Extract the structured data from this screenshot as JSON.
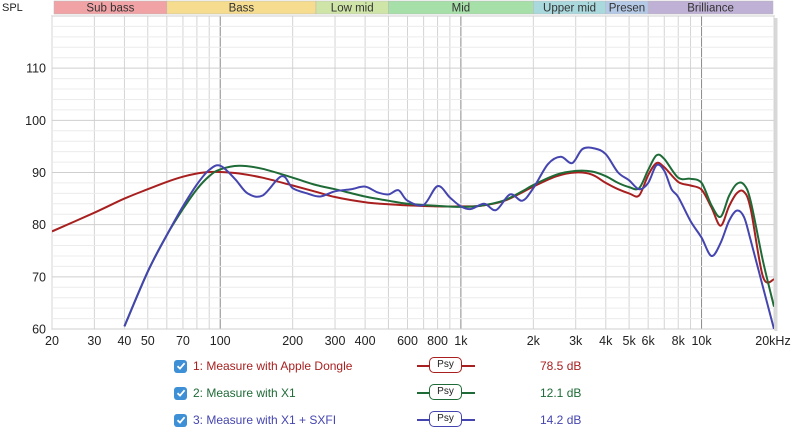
{
  "chart_data": {
    "type": "line",
    "ylabel": "SPL",
    "x_scale": "log",
    "xlim": [
      20,
      20000
    ],
    "ylim": [
      60,
      120
    ],
    "y_ticks": [
      60,
      70,
      80,
      90,
      100,
      110
    ],
    "x_ticks": [
      {
        "v": 20,
        "label": "20"
      },
      {
        "v": 30,
        "label": "30"
      },
      {
        "v": 40,
        "label": "40"
      },
      {
        "v": 50,
        "label": "50"
      },
      {
        "v": 70,
        "label": "70"
      },
      {
        "v": 100,
        "label": "100"
      },
      {
        "v": 200,
        "label": "200"
      },
      {
        "v": 300,
        "label": "300"
      },
      {
        "v": 400,
        "label": "400"
      },
      {
        "v": 600,
        "label": "600"
      },
      {
        "v": 800,
        "label": "800"
      },
      {
        "v": 1000,
        "label": "1k"
      },
      {
        "v": 2000,
        "label": "2k"
      },
      {
        "v": 3000,
        "label": "3k"
      },
      {
        "v": 4000,
        "label": "4k"
      },
      {
        "v": 5000,
        "label": "5k"
      },
      {
        "v": 6000,
        "label": "6k"
      },
      {
        "v": 8000,
        "label": "8k"
      },
      {
        "v": 10000,
        "label": "10k"
      },
      {
        "v": 20000,
        "label": "20kHz"
      }
    ],
    "bands": [
      {
        "label": "Sub bass",
        "from": 20,
        "to": 60,
        "color": "#f0a2a5"
      },
      {
        "label": "Bass",
        "from": 60,
        "to": 250,
        "color": "#f5dc8e"
      },
      {
        "label": "Low mid",
        "from": 250,
        "to": 500,
        "color": "#cfe5a7"
      },
      {
        "label": "Mid",
        "from": 500,
        "to": 2000,
        "color": "#a6dfa8"
      },
      {
        "label": "Upper mid",
        "from": 2000,
        "to": 4000,
        "color": "#a9d8dd"
      },
      {
        "label": "Presen",
        "from": 4000,
        "to": 6000,
        "color": "#b4c9e6"
      },
      {
        "label": "Brilliance",
        "from": 6000,
        "to": 20000,
        "color": "#bfb1d6"
      }
    ],
    "series": [
      {
        "name": "1: Measure with Apple Dongle",
        "color": "#a81f1f",
        "offset": "78.5 dB",
        "x": [
          20,
          30,
          40,
          50,
          60,
          70,
          80,
          90,
          100,
          120,
          150,
          200,
          250,
          300,
          400,
          500,
          600,
          800,
          1000,
          1200,
          1500,
          1800,
          2000,
          2500,
          3000,
          3500,
          4000,
          4500,
          5000,
          5500,
          6000,
          6500,
          7000,
          8000,
          9000,
          10000,
          11000,
          12000,
          13000,
          14000,
          15000,
          16000,
          18000,
          20000
        ],
        "y": [
          78.7,
          82.3,
          85.0,
          86.8,
          88.2,
          89.2,
          89.8,
          90.1,
          90.1,
          89.8,
          89.0,
          87.5,
          86.3,
          85.3,
          84.3,
          83.9,
          83.7,
          83.5,
          83.5,
          83.6,
          84.5,
          86.2,
          87.3,
          89.3,
          90.0,
          89.6,
          88.0,
          86.8,
          86.0,
          85.6,
          89.5,
          91.8,
          91.0,
          88.2,
          87.5,
          86.7,
          83.3,
          79.8,
          83.5,
          86.0,
          86.3,
          83.0,
          70.0,
          69.5
        ]
      },
      {
        "name": "2: Measure with X1",
        "color": "#1f6b37",
        "offset": "12.1 dB",
        "x": [
          40,
          50,
          60,
          70,
          80,
          90,
          100,
          120,
          150,
          200,
          250,
          300,
          400,
          500,
          600,
          800,
          1000,
          1200,
          1500,
          1800,
          2000,
          2500,
          3000,
          3500,
          4000,
          4500,
          5000,
          5500,
          6000,
          6500,
          7000,
          8000,
          9000,
          10000,
          11000,
          12000,
          13000,
          14000,
          15000,
          16000,
          18000,
          20000
        ],
        "y": [
          60.5,
          71.0,
          78.0,
          83.0,
          86.8,
          89.3,
          90.6,
          91.3,
          90.7,
          89.0,
          87.6,
          86.8,
          85.4,
          84.6,
          84.0,
          83.6,
          83.4,
          83.6,
          84.6,
          86.4,
          87.6,
          89.6,
          90.3,
          90.2,
          89.3,
          88.0,
          87.2,
          87.0,
          90.5,
          93.3,
          92.6,
          89.0,
          88.8,
          88.0,
          83.7,
          81.5,
          85.5,
          87.8,
          87.7,
          84.5,
          73.0,
          64.3
        ]
      },
      {
        "name": "3: Measure with X1 + SXFI",
        "color": "#4545b0",
        "offset": "14.2 dB",
        "x": [
          40,
          50,
          60,
          70,
          80,
          90,
          100,
          115,
          130,
          150,
          180,
          200,
          230,
          260,
          300,
          350,
          400,
          450,
          500,
          550,
          600,
          700,
          800,
          900,
          1000,
          1100,
          1250,
          1400,
          1600,
          1800,
          2000,
          2300,
          2600,
          2900,
          3200,
          3600,
          4000,
          4500,
          5000,
          5500,
          6000,
          6500,
          7000,
          7500,
          8000,
          9000,
          10000,
          11000,
          12000,
          13000,
          14000,
          15000,
          16000,
          18000,
          20000
        ],
        "y": [
          60.5,
          71.0,
          78.0,
          83.5,
          87.7,
          90.5,
          91.3,
          88.8,
          86.0,
          85.6,
          89.3,
          87.0,
          86.0,
          85.4,
          86.4,
          86.8,
          87.3,
          86.2,
          85.8,
          86.6,
          84.6,
          83.8,
          87.4,
          85.2,
          83.5,
          83.0,
          84.0,
          82.8,
          85.8,
          84.6,
          87.0,
          91.6,
          93.0,
          91.8,
          94.5,
          94.6,
          93.5,
          90.0,
          88.5,
          86.8,
          88.0,
          91.4,
          90.3,
          86.8,
          85.3,
          80.7,
          77.5,
          74.0,
          76.5,
          80.7,
          82.7,
          81.5,
          77.0,
          68.0,
          60.0
        ]
      }
    ]
  },
  "legend": [
    {
      "label": "1: Measure with Apple Dongle",
      "filter": "Psy",
      "offset": "78.5 dB",
      "color": "#a81f1f"
    },
    {
      "label": "2: Measure with X1",
      "filter": "Psy",
      "offset": "12.1 dB",
      "color": "#1f6b37"
    },
    {
      "label": "3: Measure with X1 + SXFI",
      "filter": "Psy",
      "offset": "14.2 dB",
      "color": "#4545b0"
    }
  ]
}
